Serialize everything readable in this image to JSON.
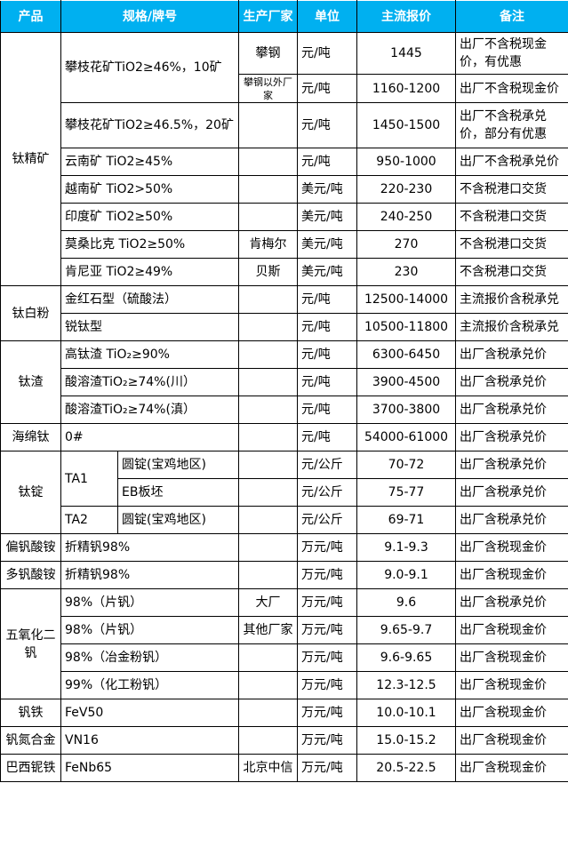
{
  "header": [
    "产品",
    "规格/牌号",
    "生产厂家",
    "单位",
    "主流报价",
    "备注"
  ],
  "colors": {
    "header_bg": "#00b0f0",
    "header_text": "#ffffff",
    "border": "#000000"
  },
  "rows": [
    [
      "钛精矿",
      "攀枝花矿TiO2≥46%，10矿",
      "攀钢",
      "元/吨",
      "1445",
      "出厂不含税现金价，有优惠"
    ],
    [
      "攀钢以外厂家",
      "元/吨",
      "1160-1200",
      "出厂不含税现金价"
    ],
    [
      "攀枝花矿TiO2≥46.5%，20矿",
      "",
      "元/吨",
      "1450-1500",
      "出厂不含税承兑价，部分有优惠"
    ],
    [
      "云南矿 TiO2≥45%",
      "",
      "元/吨",
      "950-1000",
      "出厂不含税承兑价"
    ],
    [
      "越南矿 TiO2>50%",
      "",
      "美元/吨",
      "220-230",
      "不含税港口交货"
    ],
    [
      "印度矿 TiO2≥50%",
      "",
      "美元/吨",
      "240-250",
      "不含税港口交货"
    ],
    [
      "莫桑比克 TiO2≥50%",
      "肯梅尔",
      "美元/吨",
      "270",
      "不含税港口交货"
    ],
    [
      "肯尼亚 TiO2≥49%",
      "贝斯",
      "美元/吨",
      "230",
      "不含税港口交货"
    ],
    [
      "钛白粉",
      "金红石型（硫酸法）",
      "",
      "元/吨",
      "12500-14000",
      "主流报价含税承兑"
    ],
    [
      "锐钛型",
      "",
      "元/吨",
      "10500-11800",
      "主流报价含税承兑"
    ],
    [
      "钛渣",
      "高钛渣 TiO₂≥90%",
      "",
      "元/吨",
      "6300-6450",
      "出厂含税承兑价"
    ],
    [
      "酸溶渣TiO₂≥74%(川）",
      "",
      "元/吨",
      "3900-4500",
      "出厂含税承兑价"
    ],
    [
      "酸溶渣TiO₂≥74%(滇）",
      "",
      "元/吨",
      "3700-3800",
      "出厂含税承兑价"
    ],
    [
      "海绵钛",
      "0#",
      "",
      "元/吨",
      "54000-61000",
      "出厂含税承兑价"
    ],
    [
      "钛锭",
      "TA1",
      "圆锭(宝鸡地区)",
      "",
      "元/公斤",
      "70-72",
      "出厂含税承兑价"
    ],
    [
      "EB板坯",
      "",
      "元/公斤",
      "75-77",
      "出厂含税承兑价"
    ],
    [
      "TA2",
      "圆锭(宝鸡地区)",
      "",
      "元/公斤",
      "69-71",
      "出厂含税承兑价"
    ],
    [
      "偏钒酸铵",
      "折精钒98%",
      "",
      "万元/吨",
      "9.1-9.3",
      "出厂含税现金价"
    ],
    [
      "多钒酸铵",
      "折精钒98%",
      "",
      "万元/吨",
      "9.0-9.1",
      "出厂含税现金价"
    ],
    [
      "五氧化二钒",
      "98%（片钒）",
      "大厂",
      "万元/吨",
      "9.6",
      "出厂含税承兑价"
    ],
    [
      "98%（片钒）",
      "其他厂家",
      "万元/吨",
      "9.65-9.7",
      "出厂含税现金价"
    ],
    [
      "98%（冶金粉钒）",
      "",
      "万元/吨",
      "9.6-9.65",
      "出厂含税现金价"
    ],
    [
      "99%（化工粉钒）",
      "",
      "万元/吨",
      "12.3-12.5",
      "出厂含税现金价"
    ],
    [
      "钒铁",
      "FeV50",
      "",
      "万元/吨",
      "10.0-10.1",
      "出厂含税现金价"
    ],
    [
      "钒氮合金",
      "VN16",
      "",
      "万元/吨",
      "15.0-15.2",
      "出厂含税现金价"
    ],
    [
      "巴西铌铁",
      "FeNb65",
      "北京中信",
      "万元/吨",
      "20.5-22.5",
      "出厂含税现金价"
    ]
  ]
}
